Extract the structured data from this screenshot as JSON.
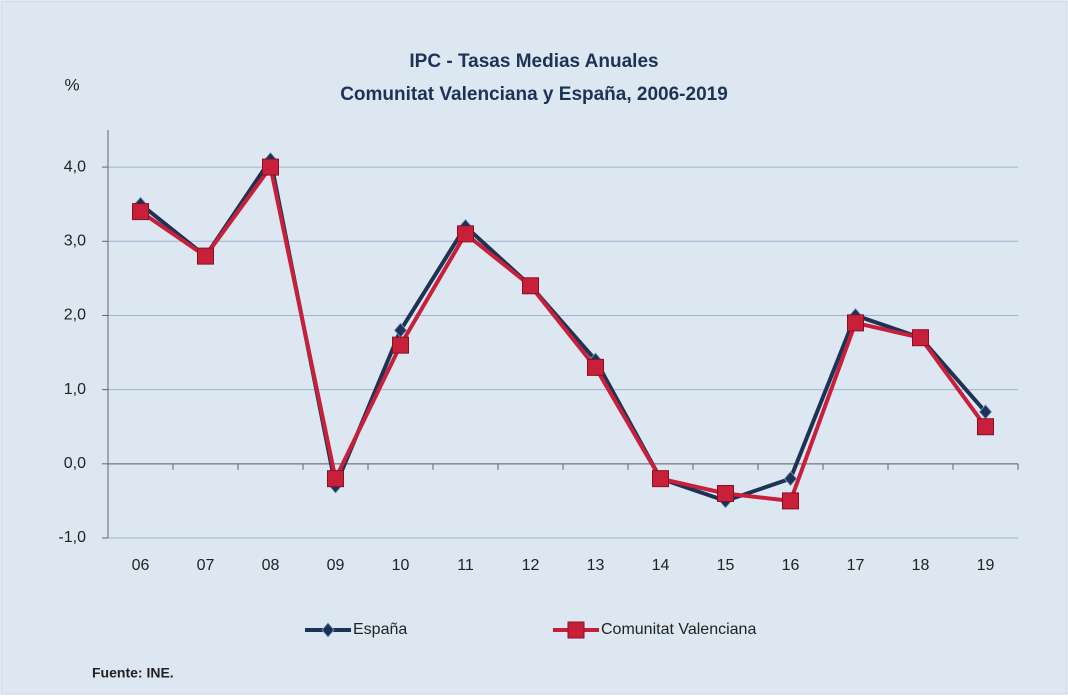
{
  "chart_data": {
    "type": "line",
    "title": "IPC - Tasas Medias Anuales",
    "subtitle": "Comunitat Valenciana y España, 2006-2019",
    "y_label": "%",
    "source": "Fuente: INE.",
    "categories": [
      "06",
      "07",
      "08",
      "09",
      "10",
      "11",
      "12",
      "13",
      "14",
      "15",
      "16",
      "17",
      "18",
      "19"
    ],
    "series": [
      {
        "name": "España",
        "color": "#1c3356",
        "marker": "diamond",
        "values": [
          3.5,
          2.8,
          4.1,
          -0.3,
          1.8,
          3.2,
          2.4,
          1.4,
          -0.2,
          -0.5,
          -0.2,
          2.0,
          1.7,
          0.7
        ]
      },
      {
        "name": "Comunitat Valenciana",
        "color": "#c8203a",
        "marker": "square",
        "values": [
          3.4,
          2.8,
          4.0,
          -0.2,
          1.6,
          3.1,
          2.4,
          1.3,
          -0.2,
          -0.4,
          -0.5,
          1.9,
          1.7,
          0.5
        ]
      }
    ],
    "ylim": [
      -1,
      4.5
    ],
    "yticks": [
      {
        "value": -1,
        "label": "-1,0"
      },
      {
        "value": 0,
        "label": "0,0"
      },
      {
        "value": 1,
        "label": "1,0"
      },
      {
        "value": 2,
        "label": "2,0"
      },
      {
        "value": 3,
        "label": "3,0"
      },
      {
        "value": 4,
        "label": "4,0"
      }
    ],
    "grid": true,
    "legend": "bottom"
  }
}
